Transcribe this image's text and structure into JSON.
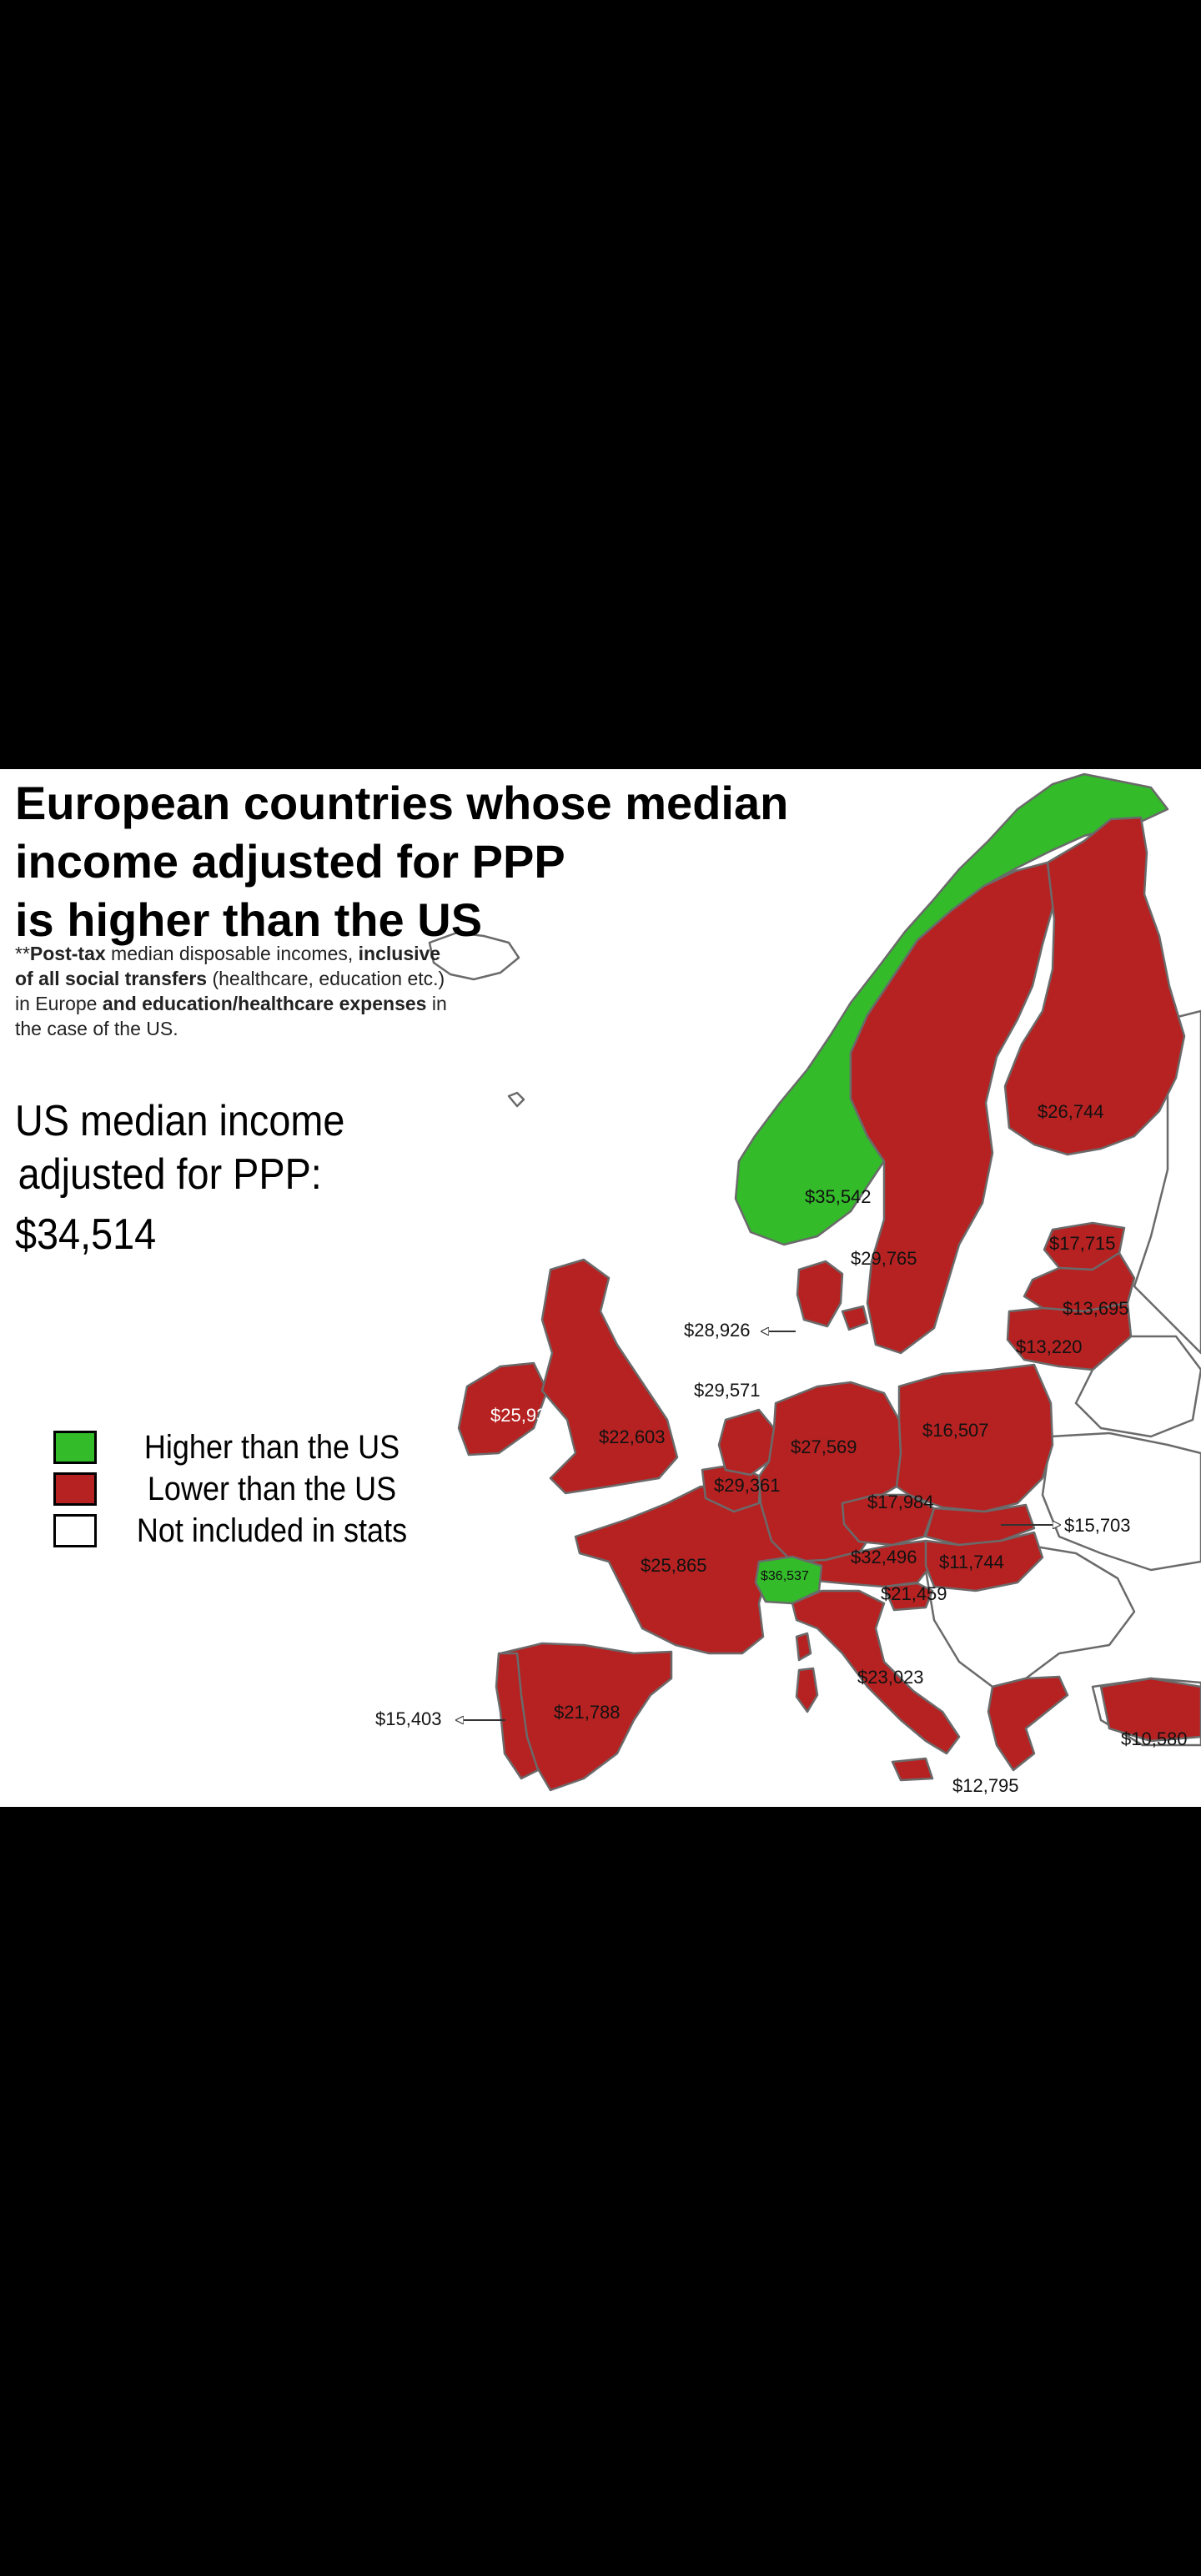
{
  "title": [
    "European countries whose median",
    "income adjusted for PPP",
    "is higher than the US"
  ],
  "note": {
    "stars": "**",
    "post_tax": "Post-tax",
    "t1": " median disposable incomes, ",
    "inclusive": "inclusive of all social transfers",
    "t2": " (healthcare, education etc.) in Europe ",
    "and": "and",
    "t3": " ",
    "expenses": "education/healthcare expenses",
    "t4": " in the case of the US."
  },
  "us_income": {
    "line1": "US median income",
    "line2": "adjusted for PPP:",
    "value": "$34,514"
  },
  "legend": [
    {
      "label": "Higher than the US",
      "color": "#33bb2a"
    },
    {
      "label": "Lower than the US",
      "color": "#b62222"
    },
    {
      "label": "Not included in stats",
      "color": "#ffffff"
    }
  ],
  "colors": {
    "higher": "#33bb2a",
    "lower": "#b62222",
    "excluded": "#ffffff",
    "border": "#6a6a6a"
  },
  "labels": {
    "norway": "$35,542",
    "finland": "$26,744",
    "sweden": "$29,765",
    "estonia": "$17,715",
    "latvia": "$13,695",
    "lithuania": "$13,220",
    "denmark": "$28,926",
    "netherlands": "$29,571",
    "ireland": "$25,933",
    "uk": "$22,603",
    "germany": "$27,569",
    "poland": "$16,507",
    "belgium": "$29,361",
    "czechia": "$17,984",
    "slovakia": "$15,703",
    "france": "$25,865",
    "switzerland": "$36,537",
    "austria": "$32,496",
    "hungary": "$11,744",
    "slovenia": "$21,459",
    "italy": "$23,023",
    "portugal": "$15,403",
    "spain": "$21,788",
    "greece": "$12,795",
    "cyprus": "$10,580"
  }
}
